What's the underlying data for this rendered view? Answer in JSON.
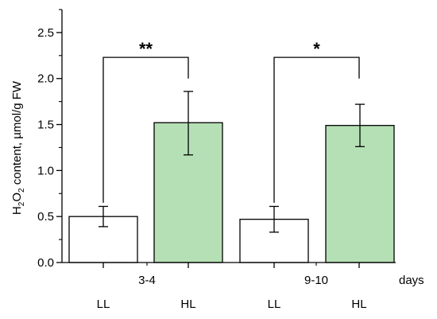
{
  "chart_data": {
    "type": "bar",
    "y_axis": {
      "label_parts": [
        "H",
        "2",
        "O",
        "2",
        " content, µmol/g FW"
      ],
      "ylim": [
        0,
        2.75
      ],
      "ticks": [
        0.0,
        0.5,
        1.0,
        1.5,
        2.0,
        2.5
      ],
      "tick_labels": [
        "0.0",
        "0.5",
        "1.0",
        "1.5",
        "2.0",
        "2.5"
      ],
      "minor_ticks": [
        0.25,
        0.75,
        1.25,
        1.75,
        2.25,
        2.75
      ]
    },
    "x_axis": {
      "label": "days",
      "groups": [
        "3-4",
        "9-10"
      ],
      "categories": [
        "LL",
        "HL",
        "LL",
        "HL"
      ]
    },
    "bars": [
      {
        "group": "3-4",
        "category": "LL",
        "value": 0.5,
        "err_low": 0.39,
        "err_high": 0.61,
        "fill": "#ffffff"
      },
      {
        "group": "3-4",
        "category": "HL",
        "value": 1.52,
        "err_low": 1.17,
        "err_high": 1.86,
        "fill": "#b5e0b5"
      },
      {
        "group": "9-10",
        "category": "LL",
        "value": 0.47,
        "err_low": 0.33,
        "err_high": 0.61,
        "fill": "#ffffff"
      },
      {
        "group": "9-10",
        "category": "HL",
        "value": 1.49,
        "err_low": 1.26,
        "err_high": 1.72,
        "fill": "#b5e0b5"
      }
    ],
    "significance": [
      {
        "group": "3-4",
        "label": "**",
        "bracket_y": 2.23,
        "left_end": 0.65,
        "right_end": 2.0
      },
      {
        "group": "9-10",
        "label": "*",
        "bracket_y": 2.23,
        "left_end": 0.65,
        "right_end": 2.0
      }
    ],
    "colors": {
      "hl_fill": "#b5e0b5",
      "ll_fill": "#ffffff",
      "stroke": "#000000"
    }
  }
}
